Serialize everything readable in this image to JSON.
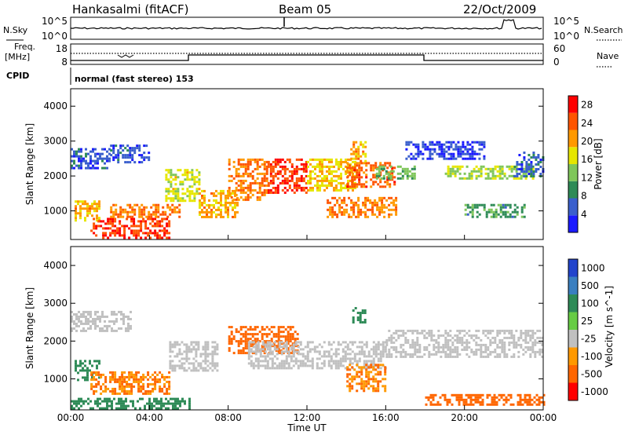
{
  "header": {
    "station": "Hankasalmi (fitACF)",
    "beam": "Beam 05",
    "date": "22/Oct/2009"
  },
  "aux_panels": {
    "nsky_label": "N.Sky",
    "nsearch_label": "N.Search",
    "noise_ticks_left": [
      "10^5",
      "10^0"
    ],
    "noise_ticks_right": [
      "10^5",
      "10^0"
    ],
    "freq_label_1": "Freq.",
    "freq_label_2": "[MHz]",
    "freq_ticks": [
      "18",
      "8"
    ],
    "nave_label": "Nave",
    "nave_ticks": [
      "60",
      "0"
    ],
    "cpid_label": "CPID",
    "cpid_text": "normal (fast stereo) 153"
  },
  "colors": {
    "power_scale": [
      "#1a1aff",
      "#3a5fcd",
      "#2e8b57",
      "#7fc65a",
      "#e6e600",
      "#ff9900",
      "#ff5500",
      "#ff0000"
    ],
    "velocity_scale": [
      "#2244cc",
      "#3a7fc0",
      "#2e8b57",
      "#66cc44",
      "#c0c0c0",
      "#ff9900",
      "#ff6600",
      "#ff0000"
    ],
    "ground_scatter": "#bebebe"
  },
  "chart_data": [
    {
      "type": "heatmap",
      "panel": "power",
      "ylabel": "Slant Range [km]",
      "y_ticks": [
        "1000",
        "2000",
        "3000",
        "4000"
      ],
      "ylim": [
        180,
        4500
      ],
      "colorbar_label": "Power [dB]",
      "colorbar_ticks": [
        "4",
        "8",
        "12",
        "16",
        "20",
        "24",
        "28"
      ],
      "colorbar_range": [
        0,
        30
      ],
      "regions": [
        {
          "x": [
            0.0,
            2.0
          ],
          "y": [
            2200,
            2800
          ],
          "value": 6
        },
        {
          "x": [
            2.0,
            4.0
          ],
          "y": [
            2400,
            2900
          ],
          "value": 5
        },
        {
          "x": [
            0.2,
            1.5
          ],
          "y": [
            700,
            1300
          ],
          "value": 20
        },
        {
          "x": [
            1.0,
            5.0
          ],
          "y": [
            250,
            800
          ],
          "value": 26
        },
        {
          "x": [
            2.0,
            5.5
          ],
          "y": [
            800,
            1200
          ],
          "value": 22
        },
        {
          "x": [
            4.8,
            6.5
          ],
          "y": [
            1300,
            2200
          ],
          "value": 16
        },
        {
          "x": [
            6.5,
            8.5
          ],
          "y": [
            800,
            1600
          ],
          "value": 20
        },
        {
          "x": [
            8.0,
            10.0
          ],
          "y": [
            1300,
            2500
          ],
          "value": 22
        },
        {
          "x": [
            10.0,
            12.0
          ],
          "y": [
            1500,
            2500
          ],
          "value": 26
        },
        {
          "x": [
            12.0,
            14.5
          ],
          "y": [
            1600,
            2500
          ],
          "value": 18
        },
        {
          "x": [
            14.0,
            16.5
          ],
          "y": [
            1700,
            2400
          ],
          "value": 24
        },
        {
          "x": [
            14.2,
            15.0
          ],
          "y": [
            2400,
            3000
          ],
          "value": 20
        },
        {
          "x": [
            13.0,
            16.5
          ],
          "y": [
            800,
            1400
          ],
          "value": 22
        },
        {
          "x": [
            15.5,
            17.5
          ],
          "y": [
            1900,
            2300
          ],
          "value": 12
        },
        {
          "x": [
            19.0,
            23.5
          ],
          "y": [
            1900,
            2300
          ],
          "value": 14
        },
        {
          "x": [
            22.5,
            24.0
          ],
          "y": [
            2000,
            2700
          ],
          "value": 6
        },
        {
          "x": [
            20.0,
            23.0
          ],
          "y": [
            800,
            1200
          ],
          "value": 10
        },
        {
          "x": [
            17.0,
            21.0
          ],
          "y": [
            2500,
            3000
          ],
          "value": 4
        }
      ]
    },
    {
      "type": "heatmap",
      "panel": "velocity",
      "ylabel": "Slant Range [km]",
      "y_ticks": [
        "1000",
        "2000",
        "3000",
        "4000"
      ],
      "ylim": [
        180,
        4500
      ],
      "xlabel": "Time UT",
      "x_ticks": [
        "00:00",
        "04:00",
        "08:00",
        "12:00",
        "16:00",
        "20:00",
        "00:00"
      ],
      "xlim": [
        0,
        24
      ],
      "colorbar_label": "Velocity [m s^-1]",
      "colorbar_ticks": [
        "1000",
        "500",
        "100",
        "25",
        "-25",
        "-100",
        "-500",
        "-1000"
      ],
      "regions": [
        {
          "x": [
            0.0,
            3.0
          ],
          "y": [
            2300,
            2800
          ],
          "value": 0
        },
        {
          "x": [
            0.2,
            1.5
          ],
          "y": [
            1000,
            1500
          ],
          "value": 150
        },
        {
          "x": [
            1.0,
            5.0
          ],
          "y": [
            600,
            1200
          ],
          "value": -60
        },
        {
          "x": [
            5.0,
            7.5
          ],
          "y": [
            1200,
            2000
          ],
          "value": 0
        },
        {
          "x": [
            8.0,
            11.5
          ],
          "y": [
            1700,
            2400
          ],
          "value": -150
        },
        {
          "x": [
            9.0,
            16.0
          ],
          "y": [
            1300,
            2000
          ],
          "value": 0
        },
        {
          "x": [
            14.3,
            15.0
          ],
          "y": [
            2500,
            2900
          ],
          "value": 200
        },
        {
          "x": [
            14.0,
            16.0
          ],
          "y": [
            700,
            1400
          ],
          "value": -60
        },
        {
          "x": [
            16.0,
            24.0
          ],
          "y": [
            1600,
            2300
          ],
          "value": 0
        },
        {
          "x": [
            0.0,
            6.0
          ],
          "y": [
            200,
            500
          ],
          "value": 80
        },
        {
          "x": [
            18.0,
            24.0
          ],
          "y": [
            300,
            600
          ],
          "value": -120
        }
      ]
    }
  ]
}
